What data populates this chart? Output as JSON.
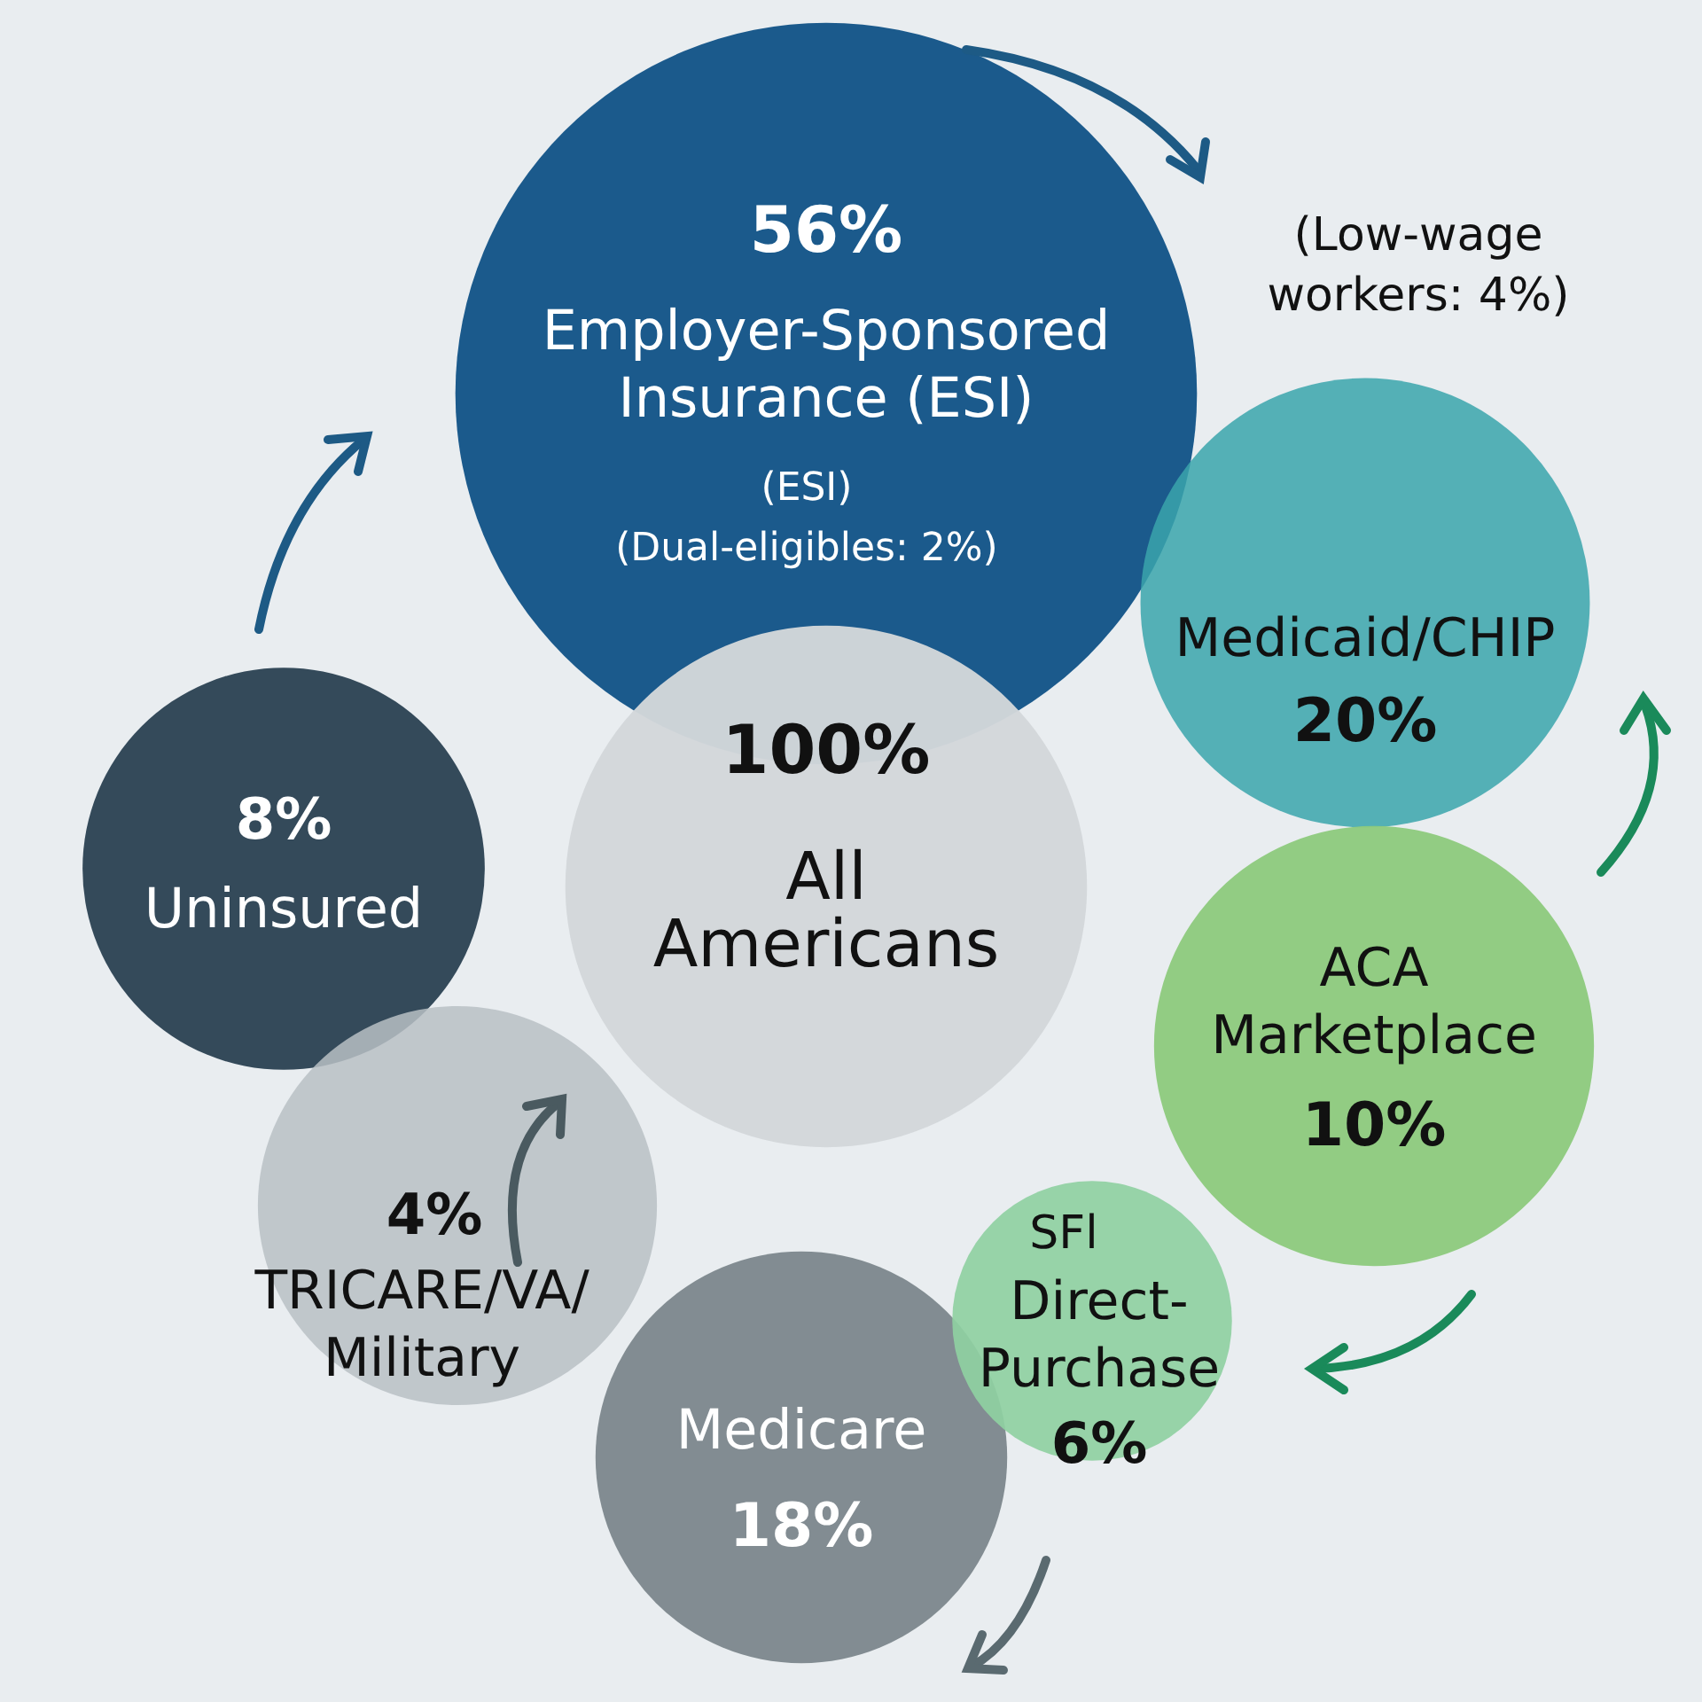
{
  "chart_data": {
    "type": "other",
    "categories": [
      "Employer-Sponsored\nInsurance (ESI)",
      "Uninsured",
      "All\nAmericans",
      "Medicaid/CHIP",
      "ACA\nMarketplace",
      "TRICARE/VA/\nMilitary",
      "Medicare",
      "Direct-\nPurchase"
    ],
    "values": [
      56,
      8,
      100,
      20,
      10,
      4,
      18,
      6
    ],
    "value_labels": [
      "56%",
      "8%",
      "100%",
      "20%",
      "10%",
      "4%",
      "18%",
      "6%"
    ],
    "colors": [
      "#1b5a8c",
      "#344a5a",
      "#d3d7da",
      "#3aa5ab",
      "#8dca7c",
      "#b9bfc4",
      "#7c878c",
      "#8fd0a2"
    ],
    "annotations": [
      "(ESI)\n(Dual-eligibles: 2%)",
      "(Low-wage\nworkers: 4%)",
      "SFl"
    ]
  }
}
